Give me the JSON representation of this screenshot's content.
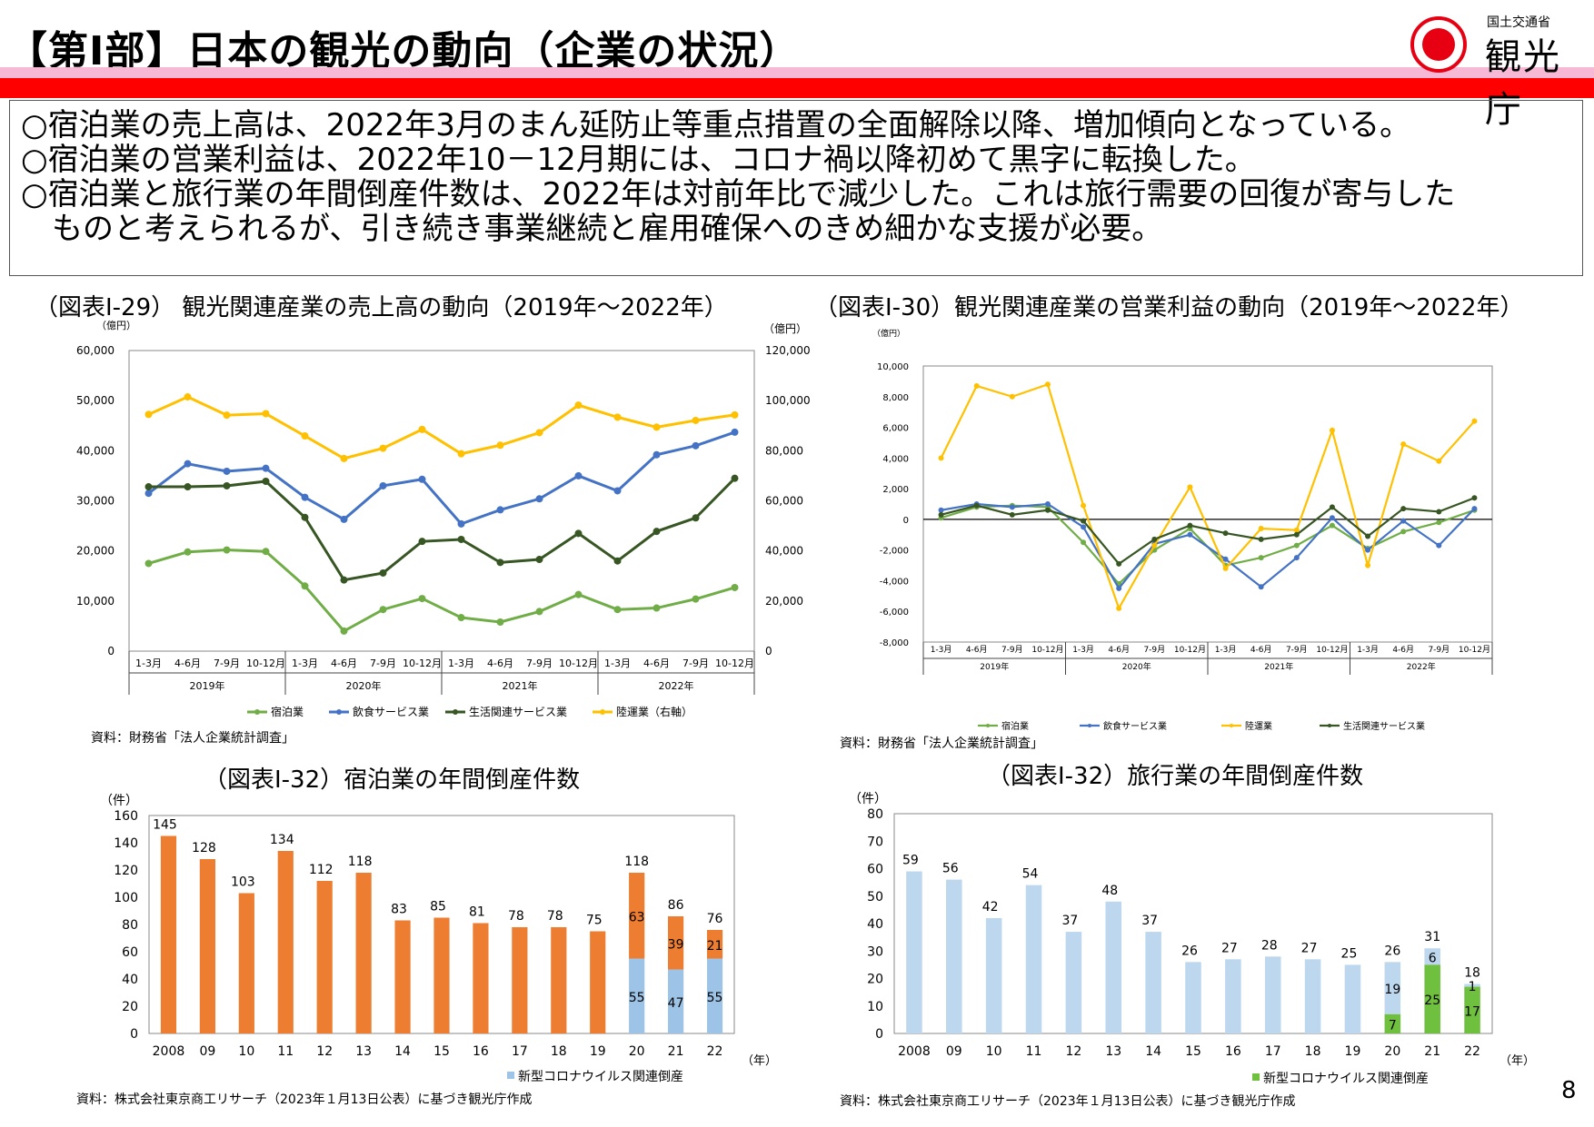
{
  "header": {
    "title": "【第Ⅰ部】日本の観光の動向（企業の状況）",
    "logo_small": "国土交通省",
    "logo_big": "観光庁"
  },
  "summary": {
    "lines": [
      "○宿泊業の売上高は、2022年3月のまん延防止等重点措置の全面解除以降、増加傾向となっている。",
      "○宿泊業の営業利益は、2022年10－12月期には、コロナ禍以降初めて黒字に転換した。",
      "○宿泊業と旅行業の年間倒産件数は、2022年は対前年比で減少した。これは旅行需要の回復が寄与した",
      "　ものと考えられるが、引き続き事業継続と雇用確保へのきめ細かな支援が必要。"
    ]
  },
  "page_number": "8",
  "colors": {
    "accommodation": "#70ad47",
    "food": "#4472c4",
    "life": "#375623",
    "transport": "#ffc000",
    "orange": "#ed7d31",
    "blue_covid": "#9dc3e6",
    "light_blue": "#bdd7ee",
    "green_covid": "#70c040"
  },
  "chart_data": [
    {
      "id": "sales",
      "type": "line",
      "title": "（図表Ⅰ-29） 観光関連産業の売上高の動向（2019年～2022年）",
      "source": "資料：財務省「法人企業統計調査」",
      "ylabel_left": "（億円）",
      "ylabel_right": "（億円）",
      "ylim_left": [
        0,
        60000
      ],
      "ylim_right": [
        0,
        120000
      ],
      "yticks_left": [
        "0",
        "10,000",
        "20,000",
        "30,000",
        "40,000",
        "50,000",
        "60,000"
      ],
      "yticks_right": [
        "0",
        "20,000",
        "40,000",
        "60,000",
        "80,000",
        "100,000",
        "120,000"
      ],
      "categories": [
        "1-3月",
        "4-6月",
        "7-9月",
        "10-12月",
        "1-3月",
        "4-6月",
        "7-9月",
        "10-12月",
        "1-3月",
        "4-6月",
        "7-9月",
        "10-12月",
        "1-3月",
        "4-6月",
        "7-9月",
        "10-12月"
      ],
      "years": [
        "2019年",
        "2020年",
        "2021年",
        "2022年"
      ],
      "series": [
        {
          "name": "宿泊業",
          "axis": "left",
          "values": [
            17500,
            19800,
            20200,
            19900,
            13000,
            4000,
            8300,
            10500,
            6700,
            5800,
            7900,
            11300,
            8300,
            8600,
            10400,
            12700
          ]
        },
        {
          "name": "飲食サービス業",
          "axis": "left",
          "values": [
            31500,
            37400,
            35900,
            36500,
            30700,
            26300,
            33000,
            34300,
            25400,
            28200,
            30400,
            35000,
            32000,
            39200,
            41000,
            43700
          ]
        },
        {
          "name": "生活関連サービス業",
          "axis": "left",
          "values": [
            32800,
            32800,
            33000,
            33900,
            26700,
            14200,
            15600,
            21900,
            22300,
            17700,
            18300,
            23500,
            18000,
            23900,
            26600,
            34500
          ]
        },
        {
          "name": "陸運業（右軸）",
          "axis": "right",
          "values": [
            94500,
            101500,
            94200,
            94800,
            85900,
            76900,
            81000,
            88500,
            78800,
            82200,
            87200,
            98200,
            93400,
            89400,
            92100,
            94300
          ]
        }
      ]
    },
    {
      "id": "profit",
      "type": "line",
      "title": "（図表Ⅰ-30）観光関連産業の営業利益の動向（2019年～2022年）",
      "source": "資料：財務省「法人企業統計調査」",
      "ylabel": "（億円）",
      "ylim": [
        -8000,
        10000
      ],
      "yticks": [
        "-8,000",
        "-6,000",
        "-4,000",
        "-2,000",
        "0",
        "2,000",
        "4,000",
        "6,000",
        "8,000",
        "10,000"
      ],
      "categories": [
        "1-3月",
        "4-6月",
        "7-9月",
        "10-12月",
        "1-3月",
        "4-6月",
        "7-9月",
        "10-12月",
        "1-3月",
        "4-6月",
        "7-9月",
        "10-12月",
        "1-3月",
        "4-6月",
        "7-9月",
        "10-12月"
      ],
      "years": [
        "2019年",
        "2020年",
        "2021年",
        "2022年"
      ],
      "series": [
        {
          "name": "宿泊業",
          "values": [
            100,
            800,
            900,
            800,
            -1500,
            -4200,
            -2000,
            -600,
            -3000,
            -2500,
            -1700,
            -400,
            -1900,
            -800,
            -200,
            600
          ]
        },
        {
          "name": "飲食サービス業",
          "values": [
            600,
            1000,
            800,
            1000,
            -500,
            -4500,
            -1600,
            -1000,
            -2600,
            -4400,
            -2500,
            100,
            -2000,
            -100,
            -1700,
            700
          ]
        },
        {
          "name": "陸運業",
          "values": [
            4000,
            8700,
            8000,
            8800,
            900,
            -5800,
            -1700,
            2100,
            -3200,
            -600,
            -700,
            5800,
            -3000,
            4900,
            3800,
            6400
          ]
        },
        {
          "name": "生活関連サービス業",
          "values": [
            300,
            900,
            300,
            600,
            -100,
            -2900,
            -1300,
            -400,
            -900,
            -1300,
            -1000,
            800,
            -1100,
            700,
            500,
            1400
          ]
        }
      ]
    },
    {
      "id": "bankrupt_hotel",
      "type": "bar",
      "title": "（図表Ⅰ-32）宿泊業の年間倒産件数",
      "source": "資料：株式会社東京商工リサーチ（2023年１月13日公表）に基づき観光庁作成",
      "ylabel": "（件）",
      "xunit": "（年）",
      "legend": "新型コロナウイルス関連倒産",
      "ylim": [
        0,
        160
      ],
      "yticks": [
        "0",
        "20",
        "40",
        "60",
        "80",
        "100",
        "120",
        "140",
        "160"
      ],
      "categories": [
        "2008",
        "09",
        "10",
        "11",
        "12",
        "13",
        "14",
        "15",
        "16",
        "17",
        "18",
        "19",
        "20",
        "21",
        "22"
      ],
      "totals": [
        145,
        128,
        103,
        134,
        112,
        118,
        83,
        85,
        81,
        78,
        78,
        75,
        118,
        86,
        76
      ],
      "covid": [
        0,
        0,
        0,
        0,
        0,
        0,
        0,
        0,
        0,
        0,
        0,
        0,
        55,
        47,
        55
      ],
      "other_labels": [
        "",
        "",
        "",
        "",
        "",
        "",
        "",
        "",
        "",
        "",
        "",
        "",
        "63",
        "39",
        "21"
      ],
      "covid_labels": [
        "",
        "",
        "",
        "",
        "",
        "",
        "",
        "",
        "",
        "",
        "",
        "",
        "55",
        "47",
        "55"
      ]
    },
    {
      "id": "bankrupt_travel",
      "type": "bar",
      "title": "（図表Ⅰ-32）旅行業の年間倒産件数",
      "source": "資料：株式会社東京商工リサーチ（2023年１月13日公表）に基づき観光庁作成",
      "ylabel": "（件）",
      "xunit": "（年）",
      "legend": "新型コロナウイルス関連倒産",
      "ylim": [
        0,
        80
      ],
      "yticks": [
        "0",
        "10",
        "20",
        "30",
        "40",
        "50",
        "60",
        "70",
        "80"
      ],
      "categories": [
        "2008",
        "09",
        "10",
        "11",
        "12",
        "13",
        "14",
        "15",
        "16",
        "17",
        "18",
        "19",
        "20",
        "21",
        "22"
      ],
      "totals": [
        59,
        56,
        42,
        54,
        37,
        48,
        37,
        26,
        27,
        28,
        27,
        25,
        26,
        31,
        18
      ],
      "covid": [
        0,
        0,
        0,
        0,
        0,
        0,
        0,
        0,
        0,
        0,
        0,
        0,
        7,
        25,
        17
      ],
      "other_labels": [
        "",
        "",
        "",
        "",
        "",
        "",
        "",
        "",
        "",
        "",
        "",
        "",
        "19",
        "6",
        "1"
      ],
      "covid_labels": [
        "",
        "",
        "",
        "",
        "",
        "",
        "",
        "",
        "",
        "",
        "",
        "",
        "7",
        "25",
        "17"
      ]
    }
  ]
}
